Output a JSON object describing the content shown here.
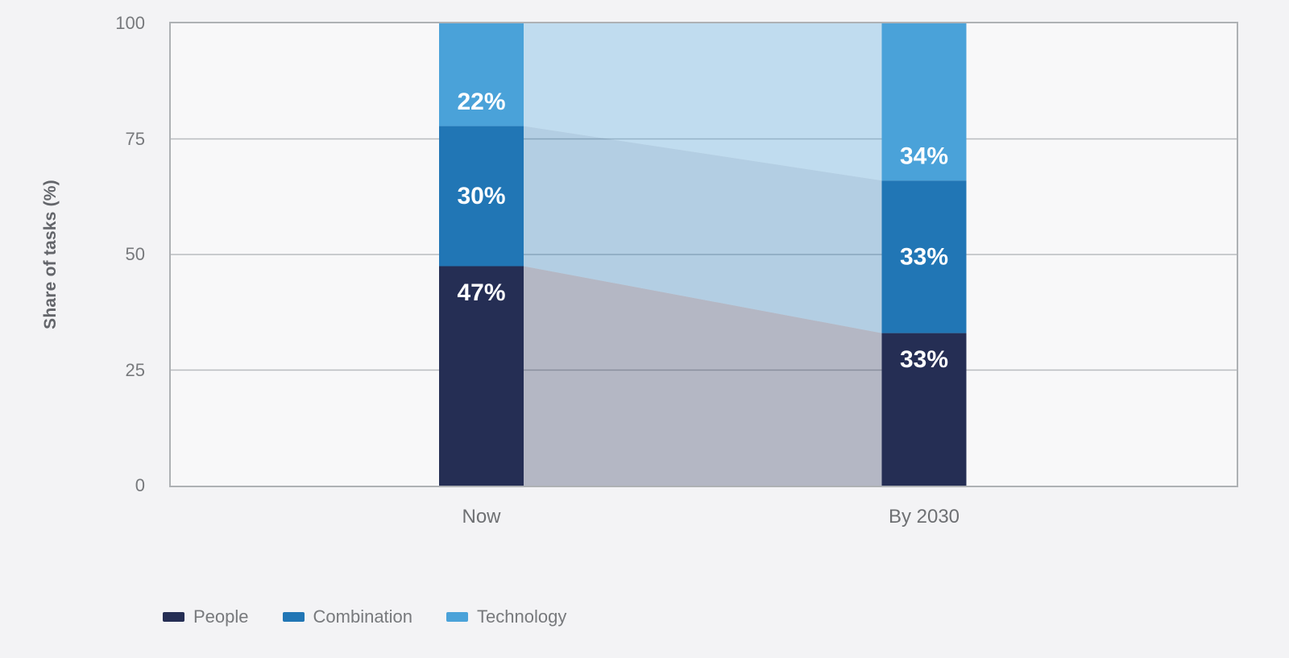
{
  "chart_data": {
    "type": "bar",
    "subtype": "stacked-bar-with-flows",
    "title": "",
    "ylabel": "Share of tasks (%)",
    "xlabel": "",
    "ylim": [
      0,
      100
    ],
    "yticks": [
      0,
      25,
      50,
      75,
      100
    ],
    "grid": true,
    "legend_position": "bottom-left",
    "categories": [
      "Now",
      "By 2030"
    ],
    "series": [
      {
        "name": "People",
        "color": "#252e54",
        "values": [
          47,
          33
        ],
        "labels": [
          "47%",
          "33%"
        ]
      },
      {
        "name": "Combination",
        "color": "#2176b5",
        "values": [
          30,
          33
        ],
        "labels": [
          "30%",
          "33%"
        ]
      },
      {
        "name": "Technology",
        "color": "#4aa2d9",
        "values": [
          22,
          34
        ],
        "labels": [
          "22%",
          "34%"
        ]
      }
    ],
    "flow_opacity": 0.32
  }
}
